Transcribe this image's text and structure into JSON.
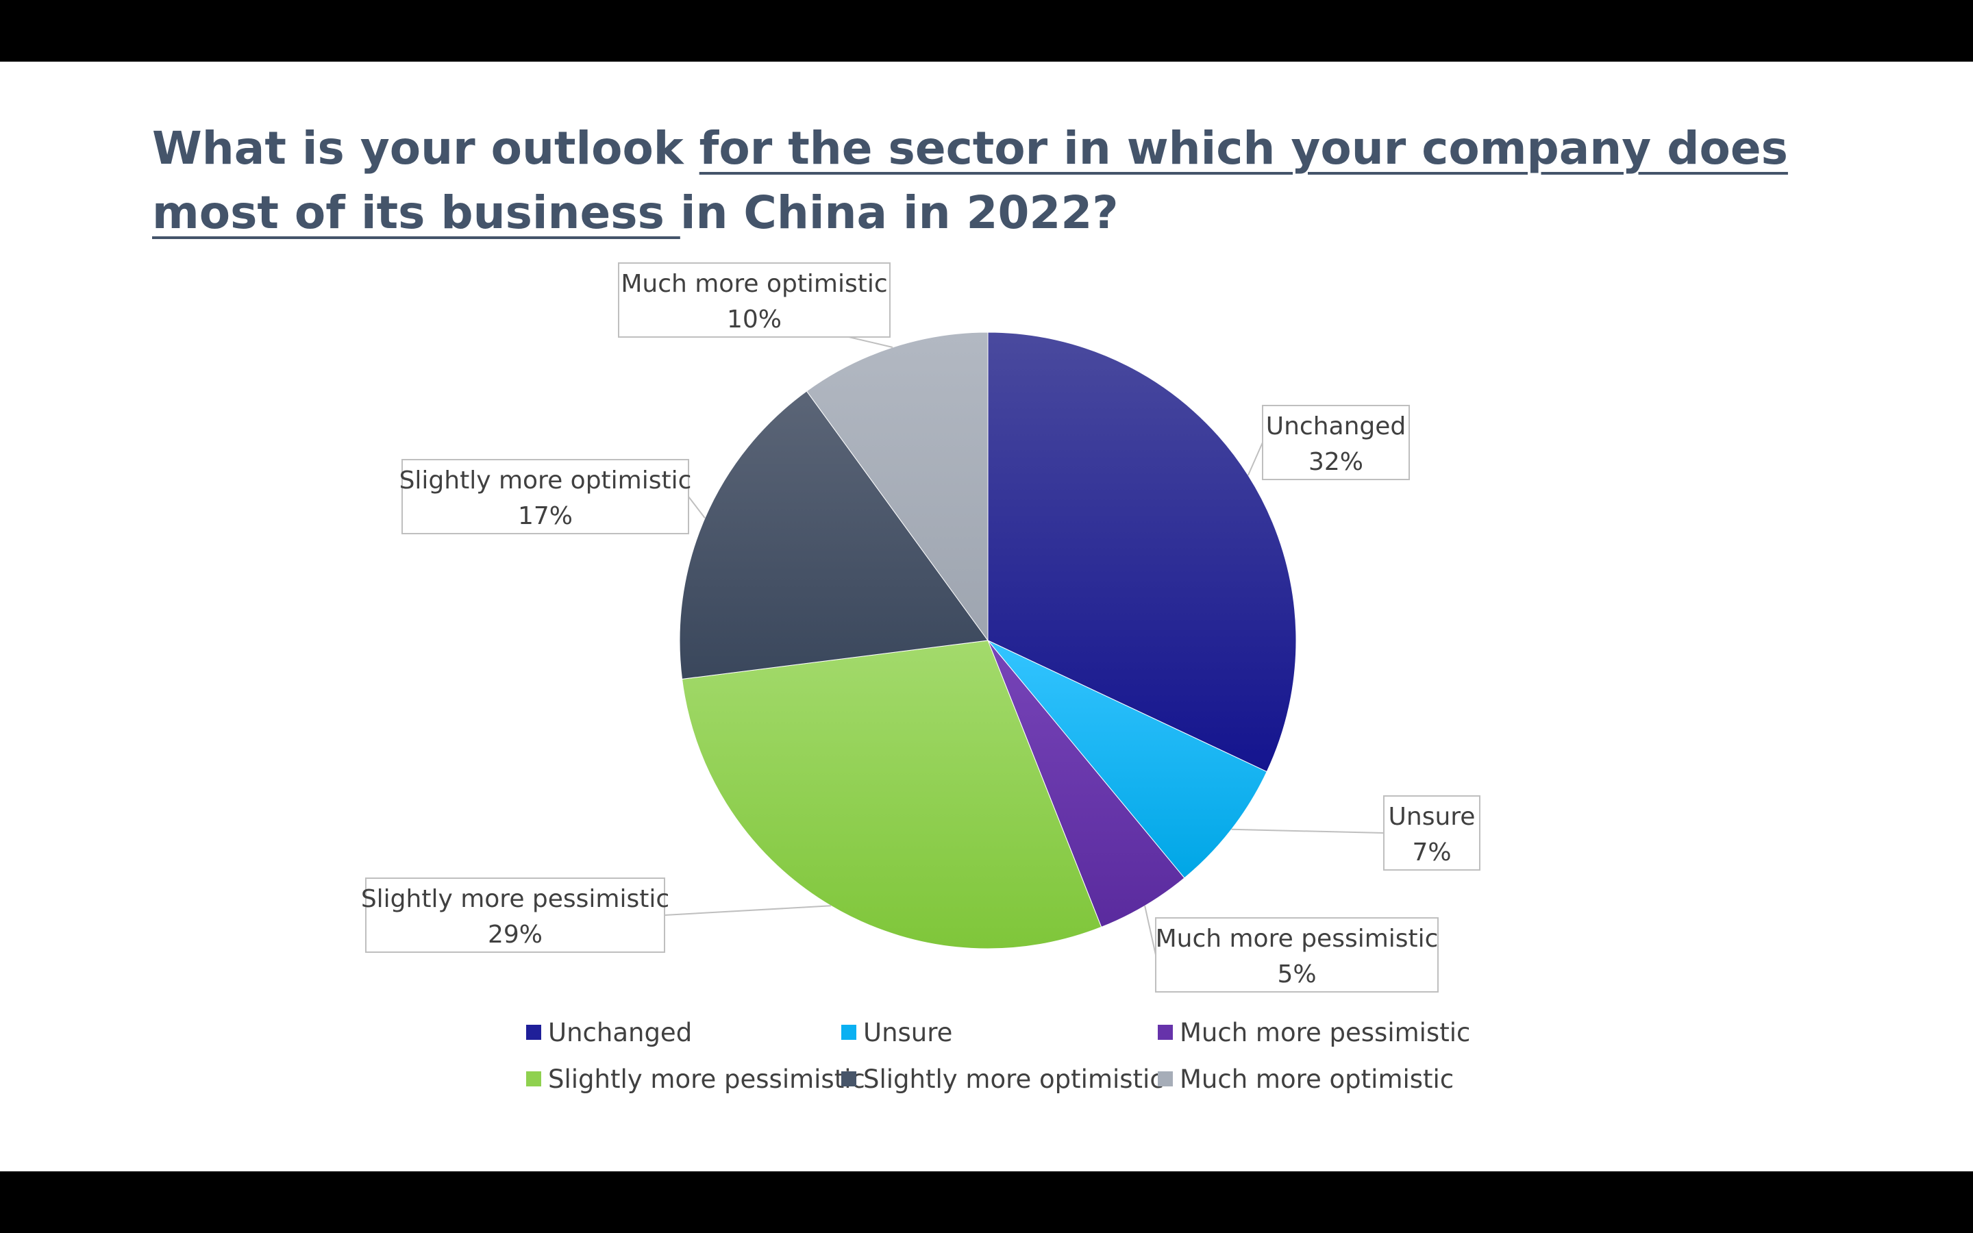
{
  "title": {
    "part1": "What is your outlook ",
    "part2": "for the sector in which your company does most of its business ",
    "part3": "in China in 2022?"
  },
  "chart_data": {
    "type": "pie",
    "title": "What is your outlook for the sector in which your company does most of its business in China in 2022?",
    "categories": [
      "Unchanged",
      "Unsure",
      "Much more pessimistic",
      "Slightly more pessimistic",
      "Slightly more optimistic",
      "Much more optimistic"
    ],
    "values": [
      32,
      7,
      5,
      29,
      17,
      10
    ],
    "unit": "%",
    "data_labels": [
      "32%",
      "7%",
      "5%",
      "29%",
      "17%",
      "10%"
    ],
    "colors": [
      "#1f1f99",
      "#0ab0f2",
      "#6633aa",
      "#8fd14f",
      "#475569",
      "#a6adb8"
    ],
    "start_angle": "12 o'clock, clockwise",
    "legend": {
      "position": "bottom",
      "entries": [
        "Unchanged",
        "Unsure",
        "Much more pessimistic",
        "Slightly more pessimistic",
        "Slightly more optimistic",
        "Much more optimistic"
      ]
    }
  }
}
